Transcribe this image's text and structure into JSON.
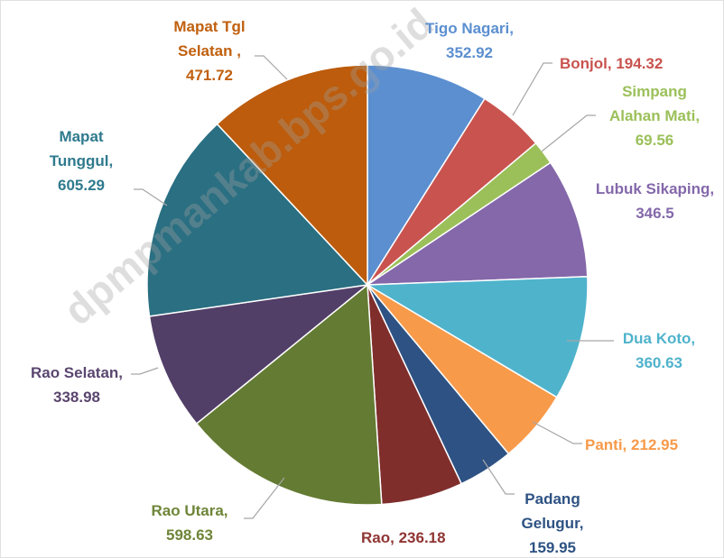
{
  "chart_data": {
    "type": "pie",
    "categories": [
      "Tigo Nagari,",
      "Bonjol,",
      "Simpang Alahan Mati,",
      "Lubuk Sikaping,",
      "Dua Koto,",
      "Panti,",
      "Padang Gelugur,",
      "Rao,",
      "Rao Utara,",
      "Rao Selatan,",
      "Mapat Tunggul,",
      "Mapat Tgl Selatan ,"
    ],
    "values": [
      352.92,
      194.32,
      69.56,
      346.5,
      360.63,
      212.95,
      159.95,
      236.18,
      598.63,
      338.98,
      605.29,
      471.72
    ],
    "colors": [
      "#5b8fd0",
      "#c9534f",
      "#9bc05a",
      "#8468aa",
      "#4fb3cc",
      "#f79a4a",
      "#2e5283",
      "#7f2e2c",
      "#647b33",
      "#523f68",
      "#2a6f82",
      "#bc5c0c"
    ],
    "label_colors": [
      "#5b8fd0",
      "#c9534f",
      "#9bc05a",
      "#8468aa",
      "#4fb3cc",
      "#f79a4a",
      "#2e5283",
      "#8f3533",
      "#6e8538",
      "#5a466f",
      "#2f7a8e",
      "#c0600f"
    ],
    "watermark": "dpmpmankab.bps.go.id"
  }
}
